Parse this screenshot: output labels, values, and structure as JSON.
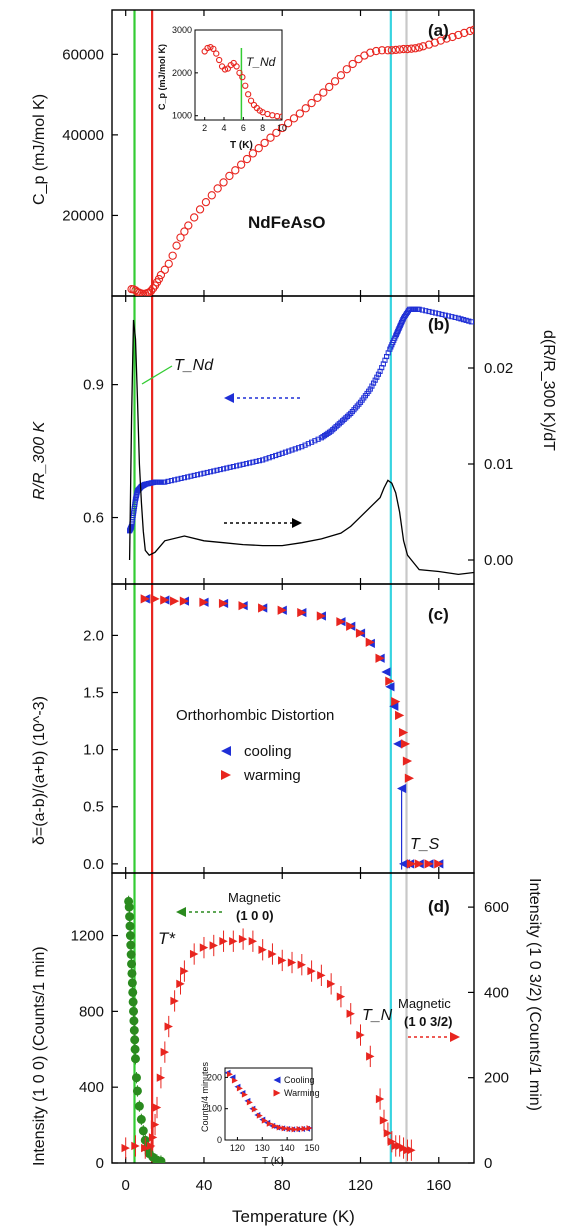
{
  "x_axis": {
    "label": "Temperature (K)",
    "ticks": [
      "0",
      "40",
      "80",
      "120",
      "160"
    ],
    "range": [
      -7,
      178
    ],
    "tick_values": [
      0,
      40,
      80,
      120,
      160
    ]
  },
  "vlines": [
    {
      "T": 4.5,
      "color": "#33cc33"
    },
    {
      "T": 13.5,
      "color": "#e8251f"
    },
    {
      "T": 135.5,
      "color": "#38d4e0"
    },
    {
      "T": 143.5,
      "color": "#c8c8c8"
    }
  ],
  "panels": {
    "a": {
      "label": "(a)",
      "compound": "NdFeAsO",
      "ylabel": "C_p (mJ/mol K)",
      "yticks": [
        20000,
        40000,
        60000
      ],
      "ylim": [
        0,
        71000
      ],
      "inset": {
        "ylabel": "C_p (mJ/mol K)",
        "xlabel": "T (K)",
        "xticks": [
          2,
          4,
          6,
          8,
          10
        ],
        "yticks": [
          1000,
          2000,
          3000
        ],
        "xlim": [
          1,
          10
        ],
        "ylim": [
          900,
          3000
        ],
        "marker_label": "T_Nd",
        "marker_T": 5.8
      }
    },
    "b": {
      "label": "(b)",
      "ylabel_left": "R/R_300 K",
      "ylabel_right": "d(R/R_300 K)/dT",
      "yticks_left": [
        0.6,
        0.9
      ],
      "ylim_left": [
        0.45,
        1.1
      ],
      "yticks_right": [
        0.0,
        0.01,
        0.02
      ],
      "ylim_right": [
        -0.0025,
        0.0275
      ],
      "annotation": "T_Nd"
    },
    "c": {
      "label": "(c)",
      "ylabel": "δ=(a-b)/(a+b)  (10^-3)",
      "yticks": [
        0.0,
        0.5,
        1.0,
        1.5,
        2.0
      ],
      "ylim": [
        -0.08,
        2.45
      ],
      "title": "Orthorhombic Distortion",
      "legend": [
        "cooling",
        "warming"
      ],
      "annotation": "T_S"
    },
    "d": {
      "label": "(d)",
      "ylabel_left": "Intensity (1 0 0) (Counts/1 min)",
      "ylabel_right": "Intensity (1 0 3/2) (Counts/1 min)",
      "yticks_left": [
        0,
        400,
        800,
        1200
      ],
      "ylim_left": [
        0,
        1530
      ],
      "yticks_right": [
        0,
        200,
        400,
        600
      ],
      "ylim_right": [
        0,
        680
      ],
      "annotations": {
        "mag100_line1": "Magnetic",
        "mag100_line2": "(1 0 0)",
        "mag1032_line1": "Magnetic",
        "mag1032_line2": "(1 0 3/2)",
        "tstar": "T*",
        "tn": "T_N"
      },
      "inset": {
        "ylabel": "Counts/4 minutes",
        "xlabel": "T (K)",
        "xticks": [
          120,
          130,
          140,
          150
        ],
        "yticks": [
          0,
          100,
          200
        ],
        "xlim": [
          115,
          150
        ],
        "ylim": [
          0,
          230
        ],
        "legend": [
          "Cooling",
          "Warming"
        ]
      }
    }
  },
  "chart_data": [
    {
      "type": "scatter",
      "title": "(a)",
      "ylabel": "C_p (mJ/mol K)",
      "xlabel": "Temperature (K)",
      "series": [
        {
          "name": "NdFeAsO",
          "color": "#e8251f",
          "marker": "open-circle",
          "x": [
            3,
            4,
            5,
            6,
            7,
            8,
            9,
            10,
            11,
            12,
            13,
            14,
            15,
            16,
            17,
            18,
            20,
            22,
            24,
            26,
            28,
            30,
            32,
            35,
            38,
            41,
            44,
            47,
            50,
            53,
            56,
            59,
            62,
            65,
            68,
            71,
            74,
            77,
            80,
            83,
            86,
            89,
            92,
            95,
            98,
            101,
            104,
            107,
            110,
            113,
            116,
            119,
            122,
            125,
            128,
            131,
            134,
            136,
            138,
            140,
            142,
            144,
            146,
            148,
            150,
            152,
            155,
            158,
            161,
            164,
            167,
            170,
            173,
            176,
            178
          ],
          "y": [
            1700,
            1650,
            1400,
            1000,
            800,
            600,
            500,
            550,
            700,
            900,
            1300,
            1900,
            2600,
            3400,
            4200,
            5200,
            6500,
            8000,
            10000,
            12500,
            14500,
            16000,
            17500,
            19500,
            21500,
            23300,
            25000,
            26700,
            28200,
            29800,
            31200,
            32600,
            34000,
            35400,
            36700,
            38000,
            39300,
            40500,
            41700,
            42900,
            44100,
            45300,
            46600,
            47900,
            49200,
            50500,
            51900,
            53300,
            54800,
            56300,
            57600,
            58800,
            59700,
            60400,
            60800,
            61000,
            61000,
            61000,
            61100,
            61200,
            61300,
            61300,
            61400,
            61500,
            61700,
            62000,
            62400,
            62900,
            63400,
            63900,
            64300,
            64800,
            65300,
            65800,
            66100
          ]
        }
      ]
    },
    {
      "type": "scatter",
      "title": "(a) inset",
      "xlabel": "T (K)",
      "ylabel": "C_p (mJ/mol K)",
      "series": [
        {
          "name": "NdFeAsO",
          "color": "#e8251f",
          "marker": "open-circle",
          "x": [
            2.0,
            2.3,
            2.6,
            2.9,
            3.2,
            3.5,
            3.8,
            4.1,
            4.4,
            4.7,
            5.0,
            5.3,
            5.6,
            5.9,
            6.2,
            6.5,
            6.8,
            7.1,
            7.4,
            7.7,
            8.0,
            8.5,
            9.0,
            9.5,
            10.0
          ],
          "y": [
            2500,
            2580,
            2600,
            2560,
            2450,
            2300,
            2150,
            2080,
            2100,
            2180,
            2230,
            2150,
            2000,
            1900,
            1700,
            1500,
            1350,
            1250,
            1180,
            1120,
            1080,
            1040,
            1010,
            990,
            980
          ]
        }
      ]
    },
    {
      "type": "line",
      "title": "(b)",
      "ylabel": "R/R_300 K",
      "y2label": "d(R/R_300 K)/dT",
      "xlabel": "Temperature (K)",
      "series": [
        {
          "name": "R/R_300 K",
          "axis": "left",
          "color": "#1f2fd6",
          "marker": "open-square",
          "x": [
            2,
            3,
            4,
            5,
            6,
            8,
            10,
            15,
            20,
            30,
            40,
            50,
            60,
            70,
            80,
            90,
            100,
            105,
            110,
            115,
            120,
            125,
            130,
            135,
            138,
            140,
            142,
            145,
            150,
            160,
            170,
            178
          ],
          "y": [
            0.57,
            0.58,
            0.61,
            0.64,
            0.66,
            0.67,
            0.675,
            0.68,
            0.68,
            0.69,
            0.7,
            0.71,
            0.72,
            0.73,
            0.745,
            0.76,
            0.78,
            0.795,
            0.815,
            0.835,
            0.86,
            0.89,
            0.93,
            0.98,
            1.01,
            1.03,
            1.05,
            1.07,
            1.07,
            1.06,
            1.05,
            1.04
          ]
        },
        {
          "name": "dR/dT",
          "axis": "right",
          "color": "#000000",
          "marker": "line",
          "x": [
            2,
            3,
            4,
            5,
            6,
            7,
            8,
            9,
            10,
            12,
            15,
            20,
            30,
            40,
            50,
            60,
            70,
            80,
            90,
            100,
            110,
            115,
            120,
            125,
            130,
            132,
            134,
            136,
            138,
            140,
            142,
            144,
            146,
            150,
            160,
            170,
            178
          ],
          "y": [
            0.0,
            0.015,
            0.025,
            0.023,
            0.017,
            0.01,
            0.006,
            0.003,
            0.001,
            0.0005,
            0.0008,
            0.002,
            0.0025,
            0.002,
            0.0018,
            0.0016,
            0.0015,
            0.0015,
            0.0018,
            0.0022,
            0.0028,
            0.0035,
            0.0045,
            0.0055,
            0.0065,
            0.0075,
            0.0083,
            0.008,
            0.007,
            0.005,
            0.002,
            0.0005,
            0.0,
            -0.001,
            -0.0012,
            -0.0015,
            -0.0013
          ]
        }
      ]
    },
    {
      "type": "scatter",
      "title": "(c) Orthorhombic Distortion",
      "ylabel": "δ=(a-b)/(a+b)  (10^-3)",
      "xlabel": "Temperature (K)",
      "series": [
        {
          "name": "cooling",
          "color": "#1f2fd6",
          "marker": "left-triangle",
          "x": [
            10,
            20,
            30,
            40,
            50,
            60,
            70,
            80,
            90,
            100,
            110,
            115,
            120,
            125,
            130,
            133,
            135,
            137,
            139,
            141,
            142,
            143,
            145,
            150,
            155,
            160
          ],
          "y": [
            2.32,
            2.31,
            2.3,
            2.29,
            2.28,
            2.26,
            2.24,
            2.22,
            2.2,
            2.17,
            2.12,
            2.08,
            2.02,
            1.93,
            1.8,
            1.68,
            1.55,
            1.38,
            1.05,
            0.66,
            0.0,
            0.0,
            0.0,
            0.0,
            0.0,
            0.0
          ]
        },
        {
          "name": "warming",
          "color": "#e8251f",
          "marker": "right-triangle",
          "x": [
            10,
            15,
            20,
            25,
            30,
            40,
            50,
            60,
            70,
            80,
            90,
            100,
            110,
            115,
            120,
            125,
            130,
            135,
            138,
            140,
            142,
            143,
            144,
            145,
            146,
            150,
            155,
            160
          ],
          "y": [
            2.32,
            2.32,
            2.31,
            2.3,
            2.3,
            2.29,
            2.28,
            2.26,
            2.24,
            2.22,
            2.2,
            2.17,
            2.12,
            2.08,
            2.02,
            1.94,
            1.8,
            1.6,
            1.42,
            1.3,
            1.15,
            1.05,
            0.9,
            0.75,
            0.0,
            0.0,
            0.0,
            0.0
          ]
        }
      ]
    },
    {
      "type": "scatter",
      "title": "(d)",
      "ylabel": "Intensity (1 0 0) (Counts/1 min)",
      "y2label": "Intensity (1 0 3/2) (Counts/1 min)",
      "xlabel": "Temperature (K)",
      "series": [
        {
          "name": "Magnetic (1 0 0)",
          "axis": "left",
          "color": "#2a8a1e",
          "marker": "filled-circle",
          "x": [
            1.5,
            1.8,
            2.0,
            2.2,
            2.4,
            2.6,
            2.8,
            3.0,
            3.2,
            3.4,
            3.6,
            3.8,
            4.0,
            4.2,
            4.4,
            4.6,
            4.8,
            5.0,
            5.5,
            6,
            7,
            8,
            9,
            10,
            11,
            12,
            14,
            16,
            18
          ],
          "y": [
            1380,
            1350,
            1300,
            1250,
            1200,
            1150,
            1100,
            1050,
            1000,
            950,
            900,
            850,
            800,
            750,
            700,
            650,
            600,
            550,
            450,
            380,
            300,
            230,
            170,
            120,
            80,
            50,
            30,
            15,
            10
          ]
        },
        {
          "name": "Magnetic (1 0 3/2)",
          "axis": "right",
          "color": "#e8251f",
          "marker": "right-triangle",
          "x": [
            0,
            5,
            10,
            13,
            14,
            15,
            16,
            18,
            20,
            22,
            25,
            28,
            30,
            35,
            40,
            45,
            50,
            55,
            60,
            65,
            70,
            75,
            80,
            85,
            90,
            95,
            100,
            105,
            110,
            115,
            120,
            125,
            130,
            132,
            134,
            136,
            138,
            140,
            142,
            144,
            146
          ],
          "y": [
            35,
            40,
            35,
            40,
            60,
            90,
            130,
            200,
            260,
            320,
            380,
            420,
            450,
            490,
            505,
            510,
            520,
            520,
            525,
            520,
            500,
            490,
            475,
            470,
            465,
            450,
            440,
            420,
            390,
            350,
            300,
            250,
            150,
            100,
            70,
            50,
            40,
            40,
            35,
            30,
            30
          ]
        }
      ]
    },
    {
      "type": "scatter",
      "title": "(d) inset",
      "xlabel": "T (K)",
      "ylabel": "Counts/4 minutes",
      "series": [
        {
          "name": "Cooling",
          "color": "#1f2fd6",
          "marker": "left-triangle",
          "x": [
            116,
            118,
            120,
            122,
            124,
            126,
            128,
            130,
            132,
            134,
            136,
            138,
            140,
            142,
            144,
            146,
            148,
            150
          ],
          "y": [
            215,
            200,
            170,
            150,
            125,
            100,
            80,
            65,
            55,
            45,
            40,
            37,
            35,
            34,
            34,
            35,
            36,
            38
          ]
        },
        {
          "name": "Warming",
          "color": "#e8251f",
          "marker": "right-triangle",
          "x": [
            117,
            119,
            121,
            123,
            125,
            127,
            129,
            131,
            133,
            135,
            137,
            139,
            141,
            143,
            145,
            147,
            149
          ],
          "y": [
            210,
            190,
            165,
            145,
            120,
            98,
            78,
            62,
            52,
            45,
            40,
            37,
            35,
            34,
            35,
            36,
            38
          ]
        }
      ]
    }
  ]
}
